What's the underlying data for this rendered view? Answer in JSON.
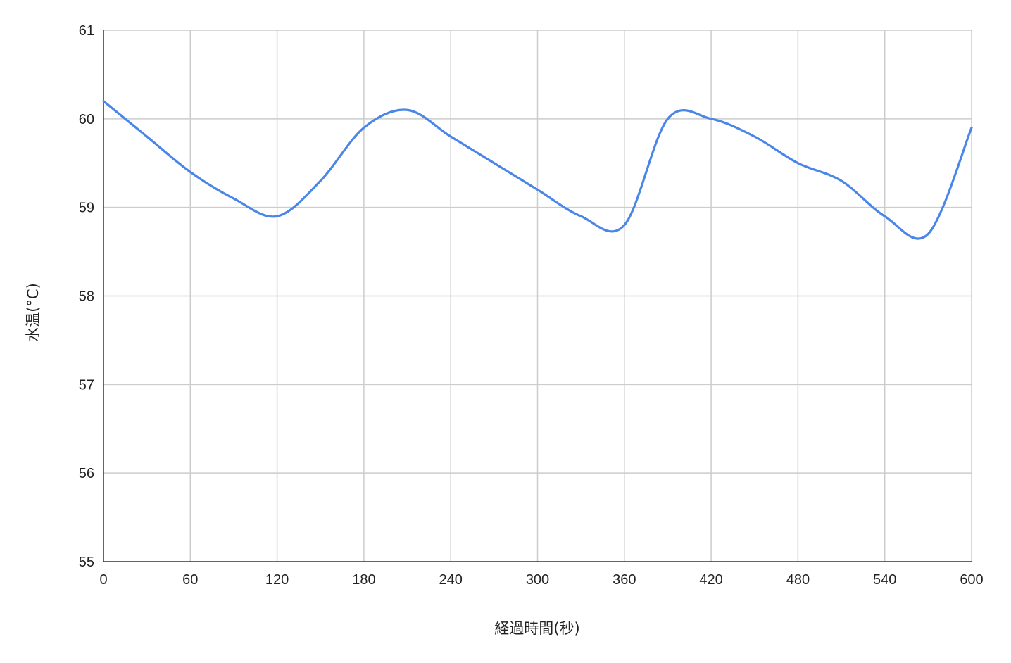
{
  "chart_data": {
    "type": "line",
    "title": "",
    "xlabel": "経過時間(秒)",
    "ylabel": "水温(°C)",
    "xlim": [
      0,
      600
    ],
    "ylim": [
      55,
      61
    ],
    "x_ticks": [
      0,
      60,
      120,
      180,
      240,
      300,
      360,
      420,
      480,
      540,
      600
    ],
    "y_ticks": [
      55,
      56,
      57,
      58,
      59,
      60,
      61
    ],
    "grid": true,
    "legend": "none",
    "series": [
      {
        "color": "#4a86e8",
        "smooth": true,
        "x": [
          0,
          30,
          60,
          90,
          120,
          150,
          180,
          210,
          240,
          270,
          300,
          330,
          360,
          390,
          420,
          450,
          480,
          510,
          540,
          570,
          600
        ],
        "y": [
          60.2,
          59.8,
          59.4,
          59.1,
          58.9,
          59.3,
          59.9,
          60.1,
          59.8,
          59.5,
          59.2,
          58.9,
          58.8,
          60.0,
          60.0,
          59.8,
          59.5,
          59.3,
          58.9,
          58.7,
          59.9
        ]
      }
    ]
  }
}
